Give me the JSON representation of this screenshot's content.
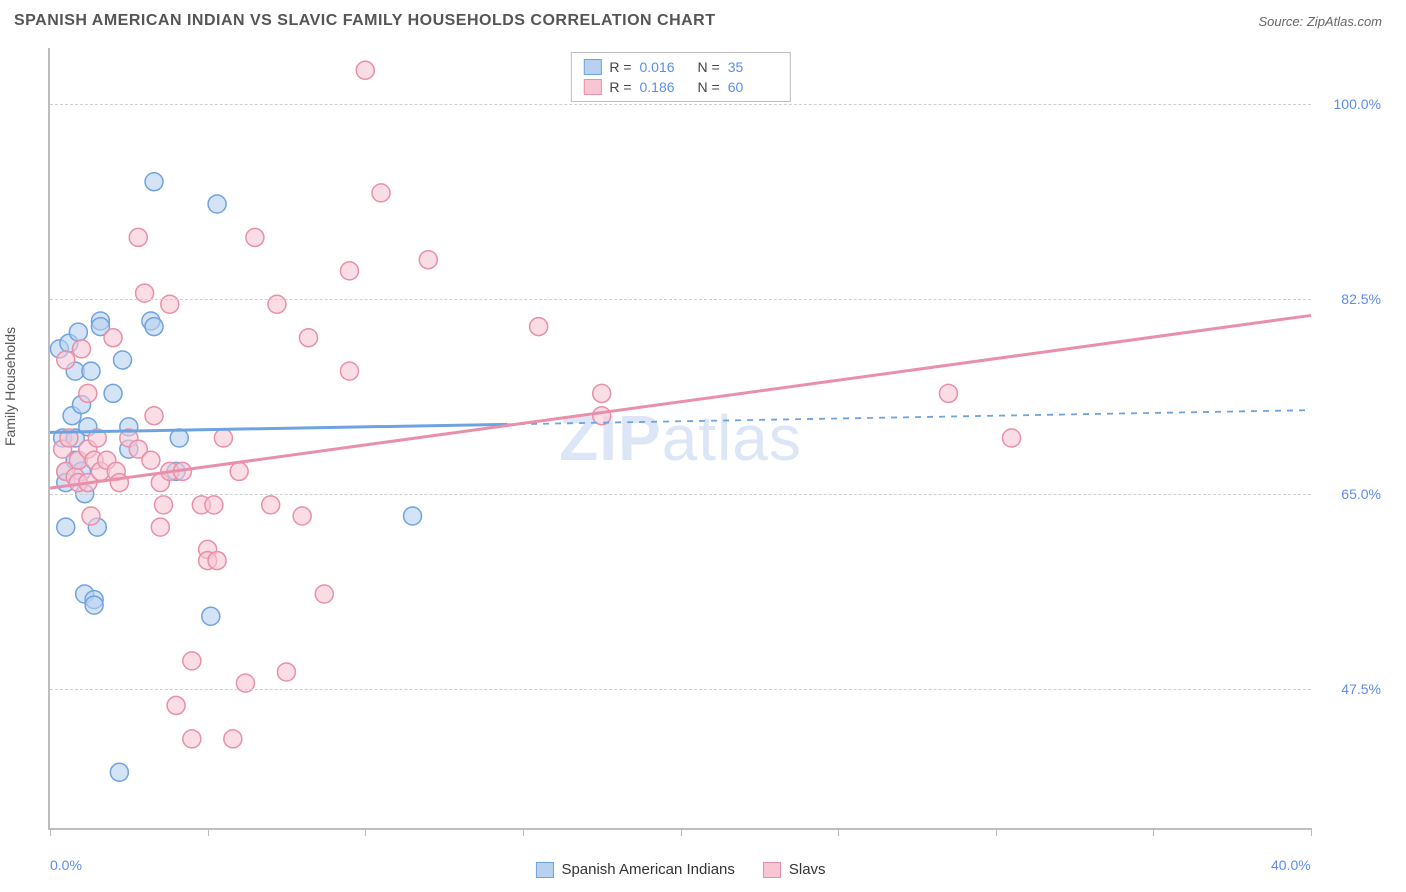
{
  "header": {
    "title": "SPANISH AMERICAN INDIAN VS SLAVIC FAMILY HOUSEHOLDS CORRELATION CHART",
    "source": "Source: ZipAtlas.com"
  },
  "watermark": {
    "bold": "ZIP",
    "rest": "atlas"
  },
  "chart": {
    "type": "scatter",
    "ylabel": "Family Households",
    "background_color": "#ffffff",
    "grid_color": "#cfcfcf",
    "axis_color": "#bdbdbd",
    "xlim": [
      0,
      40
    ],
    "ylim": [
      35,
      105
    ],
    "xticks": [
      0,
      5,
      10,
      15,
      20,
      25,
      30,
      35,
      40
    ],
    "xtick_labels": {
      "0": "0.0%",
      "40": "40.0%"
    },
    "yticks": [
      47.5,
      65.0,
      82.5,
      100.0
    ],
    "ytick_labels": [
      "47.5%",
      "65.0%",
      "82.5%",
      "100.0%"
    ],
    "label_color": "#5b8def",
    "series": [
      {
        "name": "Spanish American Indians",
        "color_fill": "#b8d1f0",
        "color_stroke": "#6fa3e0",
        "marker_radius": 9,
        "fill_opacity": 0.6,
        "R": "0.016",
        "N": "35",
        "regression": {
          "x1": 0,
          "y1": 70.5,
          "x2": 40,
          "y2": 72.5,
          "solid_until_x": 14.5,
          "width": 3
        },
        "points": [
          [
            0.3,
            78
          ],
          [
            0.4,
            70
          ],
          [
            0.5,
            67
          ],
          [
            0.5,
            66
          ],
          [
            0.5,
            62
          ],
          [
            0.6,
            78.5
          ],
          [
            0.7,
            72
          ],
          [
            0.8,
            76
          ],
          [
            0.8,
            70
          ],
          [
            0.8,
            68
          ],
          [
            0.9,
            79.5
          ],
          [
            1.0,
            73
          ],
          [
            1.0,
            67
          ],
          [
            1.1,
            65
          ],
          [
            1.1,
            56
          ],
          [
            1.2,
            71
          ],
          [
            1.3,
            76
          ],
          [
            1.4,
            55.5
          ],
          [
            1.4,
            55
          ],
          [
            1.5,
            62
          ],
          [
            1.6,
            80.5
          ],
          [
            1.6,
            80
          ],
          [
            2.0,
            74
          ],
          [
            2.2,
            40
          ],
          [
            2.3,
            77
          ],
          [
            2.5,
            69
          ],
          [
            2.5,
            71
          ],
          [
            3.2,
            80.5
          ],
          [
            3.3,
            80
          ],
          [
            3.3,
            93
          ],
          [
            4.0,
            67
          ],
          [
            4.1,
            70
          ],
          [
            5.1,
            54
          ],
          [
            5.3,
            91
          ],
          [
            11.5,
            63
          ]
        ]
      },
      {
        "name": "Slavs",
        "color_fill": "#f6c6d4",
        "color_stroke": "#e98fa9",
        "marker_radius": 9,
        "fill_opacity": 0.6,
        "R": "0.186",
        "N": "60",
        "regression": {
          "x1": 0,
          "y1": 65.5,
          "x2": 40,
          "y2": 81.0,
          "solid_until_x": 40,
          "width": 3
        },
        "points": [
          [
            0.4,
            69
          ],
          [
            0.5,
            77
          ],
          [
            0.5,
            67
          ],
          [
            0.6,
            70
          ],
          [
            0.8,
            66.5
          ],
          [
            0.9,
            68
          ],
          [
            0.9,
            66
          ],
          [
            1.0,
            78
          ],
          [
            1.2,
            74
          ],
          [
            1.2,
            69
          ],
          [
            1.2,
            66
          ],
          [
            1.3,
            63
          ],
          [
            1.4,
            68
          ],
          [
            1.5,
            70
          ],
          [
            1.6,
            67
          ],
          [
            1.8,
            68
          ],
          [
            2.0,
            79
          ],
          [
            2.1,
            67
          ],
          [
            2.2,
            66
          ],
          [
            2.5,
            70
          ],
          [
            2.8,
            69
          ],
          [
            2.8,
            88
          ],
          [
            3.0,
            83
          ],
          [
            3.2,
            68
          ],
          [
            3.3,
            72
          ],
          [
            3.5,
            66
          ],
          [
            3.5,
            62
          ],
          [
            3.6,
            64
          ],
          [
            3.8,
            67
          ],
          [
            3.8,
            82
          ],
          [
            4.0,
            46
          ],
          [
            4.2,
            67
          ],
          [
            4.5,
            50
          ],
          [
            4.5,
            43
          ],
          [
            4.8,
            64
          ],
          [
            5.0,
            60
          ],
          [
            5.0,
            59
          ],
          [
            5.2,
            64
          ],
          [
            5.3,
            59
          ],
          [
            5.5,
            70
          ],
          [
            5.8,
            43
          ],
          [
            6.0,
            67
          ],
          [
            6.2,
            48
          ],
          [
            6.5,
            88
          ],
          [
            7.0,
            64
          ],
          [
            7.2,
            82
          ],
          [
            7.5,
            49
          ],
          [
            8.0,
            63
          ],
          [
            8.2,
            79
          ],
          [
            8.7,
            56
          ],
          [
            9.5,
            85
          ],
          [
            9.5,
            76
          ],
          [
            10.5,
            92
          ],
          [
            10.0,
            103
          ],
          [
            12.0,
            86
          ],
          [
            15.5,
            80
          ],
          [
            17.5,
            74
          ],
          [
            17.5,
            72
          ],
          [
            28.5,
            74
          ],
          [
            30.5,
            70
          ]
        ]
      }
    ],
    "legend_bottom": [
      {
        "label": "Spanish American Indians",
        "fill": "#b8d1f0",
        "stroke": "#6fa3e0"
      },
      {
        "label": "Slavs",
        "fill": "#f6c6d4",
        "stroke": "#e98fa9"
      }
    ]
  }
}
